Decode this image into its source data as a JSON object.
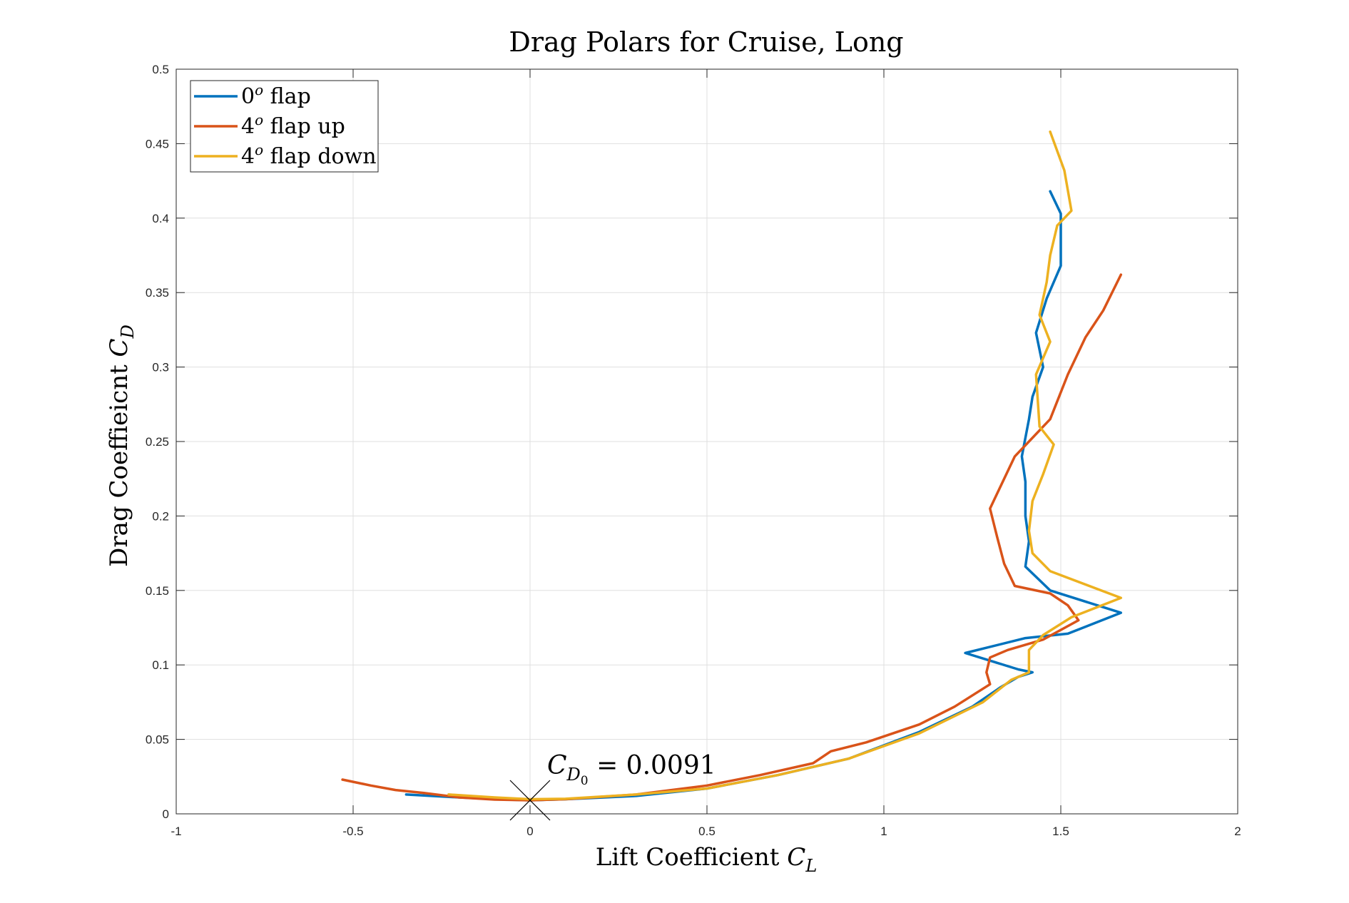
{
  "chart_data": {
    "type": "line",
    "title": "Drag Polars for Cruise, Long",
    "xlabel": "Lift Coefficient",
    "xlabel_symbol": "C",
    "xlabel_sub": "L",
    "ylabel": "Drag Coeffieicnt",
    "ylabel_symbol": "C",
    "ylabel_sub": "D",
    "xlim": [
      -1,
      2
    ],
    "ylim": [
      0,
      0.5
    ],
    "xticks": [
      -1,
      -0.5,
      0,
      0.5,
      1,
      1.5,
      2
    ],
    "xtick_labels": [
      "-1",
      "-0.5",
      "0",
      "0.5",
      "1",
      "1.5",
      "2"
    ],
    "yticks": [
      0,
      0.05,
      0.1,
      0.15,
      0.2,
      0.25,
      0.3,
      0.35,
      0.4,
      0.45,
      0.5
    ],
    "ytick_labels": [
      "0",
      "0.05",
      "0.1",
      "0.15",
      "0.2",
      "0.25",
      "0.3",
      "0.35",
      "0.4",
      "0.45",
      "0.5"
    ],
    "grid": true,
    "legend_position": "top-left",
    "series": [
      {
        "name": "0° flap",
        "legend_base": "0",
        "legend_sup": "o",
        "legend_rest": " flap",
        "color": "#0072BD",
        "x": [
          -0.35,
          -0.2,
          -0.05,
          0.0,
          0.1,
          0.3,
          0.5,
          0.7,
          0.9,
          1.1,
          1.25,
          1.33,
          1.38,
          1.42,
          1.38,
          1.23,
          1.4,
          1.52,
          1.67,
          1.47,
          1.4,
          1.41,
          1.4,
          1.4,
          1.39,
          1.41,
          1.42,
          1.45,
          1.43,
          1.46,
          1.5,
          1.5,
          1.5,
          1.47
        ],
        "y": [
          0.013,
          0.011,
          0.0095,
          0.0091,
          0.0098,
          0.012,
          0.017,
          0.026,
          0.037,
          0.055,
          0.072,
          0.085,
          0.092,
          0.095,
          0.097,
          0.108,
          0.118,
          0.121,
          0.135,
          0.15,
          0.166,
          0.183,
          0.2,
          0.223,
          0.24,
          0.265,
          0.28,
          0.3,
          0.323,
          0.346,
          0.368,
          0.392,
          0.403,
          0.418
        ]
      },
      {
        "name": "4° flap up",
        "legend_base": "4",
        "legend_sup": "o",
        "legend_rest": " flap up",
        "color": "#D95319",
        "x": [
          -0.53,
          -0.45,
          -0.38,
          -0.3,
          -0.2,
          -0.1,
          0.0,
          0.1,
          0.3,
          0.5,
          0.65,
          0.8,
          0.85,
          0.95,
          1.1,
          1.2,
          1.3,
          1.29,
          1.3,
          1.35,
          1.45,
          1.55,
          1.52,
          1.47,
          1.37,
          1.34,
          1.32,
          1.3,
          1.34,
          1.37,
          1.41,
          1.47,
          1.52,
          1.57,
          1.62,
          1.67
        ],
        "y": [
          0.023,
          0.019,
          0.016,
          0.014,
          0.011,
          0.0096,
          0.0091,
          0.0098,
          0.013,
          0.019,
          0.026,
          0.034,
          0.042,
          0.048,
          0.06,
          0.072,
          0.087,
          0.095,
          0.105,
          0.11,
          0.117,
          0.13,
          0.14,
          0.148,
          0.153,
          0.168,
          0.186,
          0.205,
          0.225,
          0.24,
          0.25,
          0.265,
          0.295,
          0.32,
          0.338,
          0.362
        ]
      },
      {
        "name": "4° flap down",
        "legend_base": "4",
        "legend_sup": "o",
        "legend_rest": " flap down",
        "color": "#EDB120",
        "x": [
          -0.23,
          -0.1,
          0.0,
          0.1,
          0.3,
          0.5,
          0.7,
          0.9,
          1.1,
          1.28,
          1.36,
          1.41,
          1.41,
          1.45,
          1.53,
          1.67,
          1.47,
          1.42,
          1.41,
          1.42,
          1.45,
          1.48,
          1.44,
          1.43,
          1.47,
          1.44,
          1.46,
          1.47,
          1.49,
          1.53,
          1.51,
          1.47
        ],
        "y": [
          0.013,
          0.011,
          0.0098,
          0.0101,
          0.013,
          0.017,
          0.026,
          0.037,
          0.054,
          0.075,
          0.09,
          0.095,
          0.11,
          0.12,
          0.132,
          0.145,
          0.163,
          0.175,
          0.19,
          0.21,
          0.228,
          0.248,
          0.26,
          0.295,
          0.317,
          0.335,
          0.357,
          0.375,
          0.395,
          0.405,
          0.432,
          0.458
        ]
      }
    ],
    "annotation": {
      "x": 0.0,
      "y": 0.0091,
      "marker": "x",
      "symbol": "C",
      "sub": "D",
      "subsub": "0",
      "value_text": " = 0.0091"
    }
  }
}
